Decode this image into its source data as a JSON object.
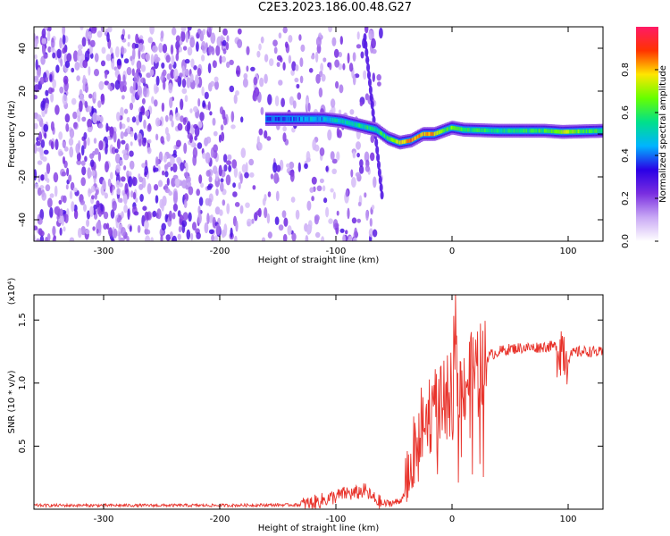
{
  "figure": {
    "title": "C2E3.2023.186.00.48.G27"
  },
  "chart_data": [
    {
      "type": "heatmap",
      "xlabel": "Height of straight line (km)",
      "ylabel": "Frequency (Hz)",
      "xlim": [
        -360,
        130
      ],
      "ylim": [
        -50,
        50
      ],
      "xticks": [
        -300,
        -200,
        -100,
        0,
        100
      ],
      "yticks": [
        -40,
        -20,
        0,
        20,
        40
      ],
      "colorbar": {
        "label": "Normalized spectral amplitude",
        "range": [
          0,
          1
        ],
        "ticks": [
          "0.0",
          "0.2",
          "0.4",
          "0.6",
          "0.8"
        ],
        "colormap": "rainbow (white-violet-blue-cyan-green-yellow-red-magenta)",
        "colors": [
          "#ffffff",
          "#c9a9f5",
          "#7a2ee0",
          "#2a00e6",
          "#00b4ff",
          "#00e08a",
          "#66ff00",
          "#ffe600",
          "#ff3300",
          "#ff1a66"
        ]
      },
      "signal_track": [
        {
          "x": -160,
          "freq": 7,
          "amp": 0.35
        },
        {
          "x": -140,
          "freq": 7,
          "amp": 0.4
        },
        {
          "x": -110,
          "freq": 7,
          "amp": 0.45
        },
        {
          "x": -95,
          "freq": 6,
          "amp": 0.5
        },
        {
          "x": -80,
          "freq": 4,
          "amp": 0.55
        },
        {
          "x": -65,
          "freq": 2,
          "amp": 0.55
        },
        {
          "x": -55,
          "freq": -2,
          "amp": 0.6
        },
        {
          "x": -45,
          "freq": -4,
          "amp": 0.75
        },
        {
          "x": -35,
          "freq": -3,
          "amp": 0.85
        },
        {
          "x": -25,
          "freq": 0,
          "amp": 0.8
        },
        {
          "x": -15,
          "freq": 0,
          "amp": 0.8
        },
        {
          "x": -5,
          "freq": 2,
          "amp": 0.6
        },
        {
          "x": 0,
          "freq": 3,
          "amp": 0.65
        },
        {
          "x": 10,
          "freq": 2,
          "amp": 0.6
        },
        {
          "x": 40,
          "freq": 1.5,
          "amp": 0.55
        },
        {
          "x": 80,
          "freq": 1.5,
          "amp": 0.6
        },
        {
          "x": 95,
          "freq": 1,
          "amp": 0.7
        },
        {
          "x": 130,
          "freq": 1.5,
          "amp": 0.55
        }
      ],
      "noise_region": {
        "x_from": -360,
        "x_to": -60
      }
    },
    {
      "type": "line",
      "xlabel": "Height of straight line (km)",
      "ylabel": "SNR (10 * v/v)",
      "y_multiplier_label": "(x10⁴)",
      "xlim": [
        -360,
        130
      ],
      "ylim": [
        0,
        1.7
      ],
      "xticks": [
        -300,
        -200,
        -100,
        0,
        100
      ],
      "yticks": [
        0.5,
        1.0,
        1.5
      ],
      "series": [
        {
          "color": "#e8322a",
          "x": [
            -360,
            -200,
            -130,
            -120,
            -100,
            -90,
            -85,
            -75,
            -70,
            -60,
            -45,
            -40,
            -35,
            -30,
            -25,
            -20,
            -15,
            -10,
            -5,
            0,
            3,
            5,
            8,
            10,
            15,
            20,
            25,
            30,
            35,
            40,
            50,
            60,
            70,
            80,
            90,
            95,
            97,
            100,
            105,
            110,
            120,
            130
          ],
          "y": [
            0.03,
            0.03,
            0.035,
            0.05,
            0.1,
            0.13,
            0.12,
            0.15,
            0.1,
            0.04,
            0.06,
            0.15,
            0.3,
            0.55,
            0.65,
            0.75,
            0.85,
            0.8,
            0.85,
            0.95,
            1.55,
            0.9,
            0.95,
            1.0,
            1.05,
            1.08,
            1.15,
            1.2,
            1.23,
            1.25,
            1.27,
            1.28,
            1.28,
            1.29,
            1.29,
            1.3,
            1.25,
            1.2,
            1.24,
            1.25,
            1.25,
            1.24
          ]
        }
      ]
    }
  ]
}
